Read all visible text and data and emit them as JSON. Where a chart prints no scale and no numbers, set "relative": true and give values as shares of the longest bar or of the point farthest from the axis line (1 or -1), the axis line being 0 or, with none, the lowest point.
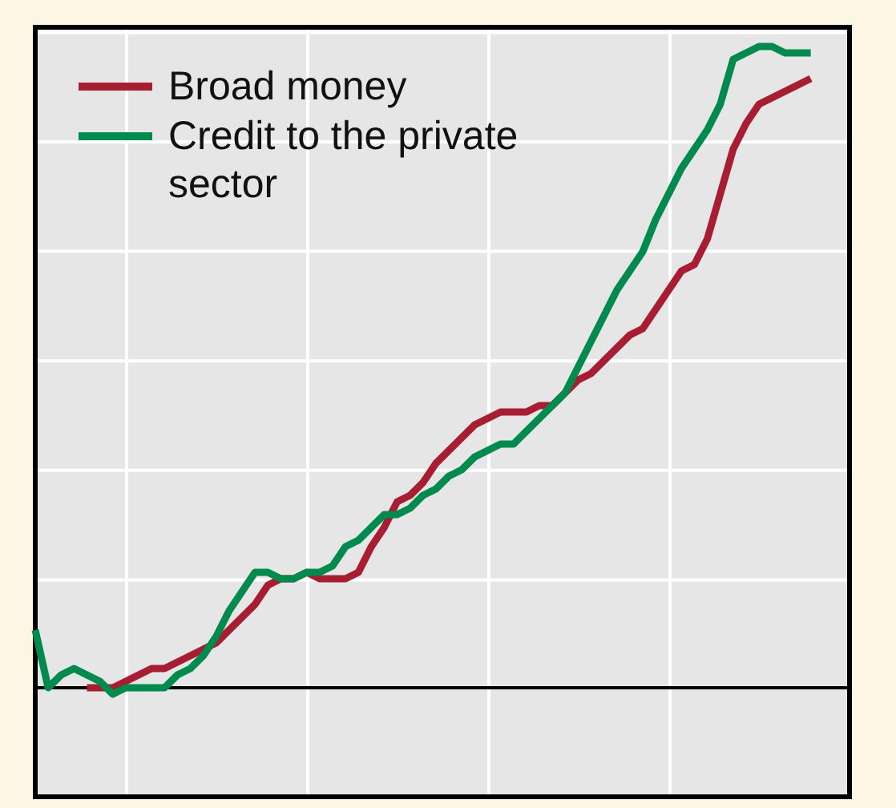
{
  "chart_data": {
    "type": "line",
    "relative": true,
    "grid": true,
    "legend": "top left",
    "marker": "none",
    "line_style": "solid",
    "categories": [
      null,
      null,
      null,
      null,
      null,
      null,
      null,
      null,
      null,
      null,
      null,
      null,
      null,
      null,
      null,
      null,
      null,
      null,
      null,
      null,
      null,
      null,
      null,
      null,
      null,
      null,
      null,
      null,
      null,
      null,
      null,
      null,
      null,
      null,
      null,
      null,
      null,
      null,
      null,
      null,
      null,
      null,
      null,
      null,
      null,
      null,
      null,
      null,
      null,
      null,
      null,
      null,
      null,
      null,
      null,
      null,
      null,
      null,
      null,
      null,
      null,
      null,
      null,
      null
    ],
    "series": [
      {
        "name": "Broad money",
        "color": "#a71d31",
        "values": [
          null,
          null,
          null,
          null,
          0,
          0,
          0.0,
          0.01,
          0.02,
          0.03,
          0.03,
          0.04,
          0.05,
          0.06,
          0.07,
          0.09,
          0.11,
          0.13,
          0.16,
          0.17,
          0.17,
          0.18,
          0.17,
          0.17,
          0.17,
          0.18,
          0.22,
          0.25,
          0.29,
          0.3,
          0.32,
          0.35,
          0.37,
          0.39,
          0.41,
          0.42,
          0.43,
          0.43,
          0.43,
          0.44,
          0.44,
          0.46,
          0.48,
          0.49,
          0.51,
          0.53,
          0.55,
          0.56,
          0.59,
          0.62,
          0.65,
          0.66,
          0.7,
          0.77,
          0.84,
          0.88,
          0.91,
          0.92,
          0.93,
          0.94,
          0.95,
          null,
          null,
          null
        ]
      },
      {
        "name": "Credit to the private sector",
        "color": "#008a4e",
        "values": [
          0.09,
          0.0,
          0.02,
          0.03,
          0.02,
          0.01,
          -0.01,
          0.0,
          0.0,
          0.0,
          0.0,
          0.02,
          0.03,
          0.05,
          0.08,
          0.12,
          0.15,
          0.18,
          0.18,
          0.17,
          0.17,
          0.18,
          0.18,
          0.19,
          0.22,
          0.23,
          0.25,
          0.27,
          0.27,
          0.28,
          0.3,
          0.31,
          0.33,
          0.34,
          0.36,
          0.37,
          0.38,
          0.38,
          0.4,
          0.42,
          0.44,
          0.46,
          0.5,
          0.54,
          0.58,
          0.62,
          0.65,
          0.68,
          0.73,
          0.77,
          0.81,
          0.84,
          0.87,
          0.91,
          0.98,
          0.99,
          1.0,
          1.0,
          0.99,
          0.99,
          0.99,
          null,
          null,
          null
        ]
      }
    ]
  }
}
